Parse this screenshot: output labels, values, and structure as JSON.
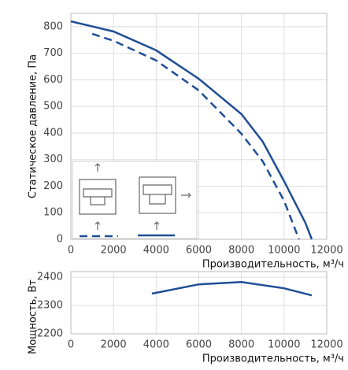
{
  "chart_data": [
    {
      "type": "line",
      "ylabel": "Статическое давление, Па",
      "xlabel": "Производительность, м³/ч",
      "xlim": [
        0,
        12000
      ],
      "xticks": [
        0,
        2000,
        4000,
        6000,
        8000,
        10000,
        12000
      ],
      "ylim": [
        0,
        850
      ],
      "yticks": [
        0,
        100,
        200,
        300,
        400,
        500,
        600,
        700,
        800
      ],
      "grid": true,
      "series": [
        {
          "color": "#1f4e96",
          "dash": false,
          "x": [
            0,
            2000,
            4000,
            6000,
            8000,
            9000,
            10000,
            11000,
            11300
          ],
          "values": [
            820,
            782,
            711,
            604,
            471,
            367,
            219,
            62,
            0
          ]
        },
        {
          "color": "#1f4e96",
          "dash": true,
          "x": [
            1000,
            2000,
            4000,
            6000,
            8000,
            9000,
            10000,
            10700
          ],
          "values": [
            773,
            747,
            673,
            560,
            397,
            293,
            145,
            0
          ]
        }
      ]
    },
    {
      "type": "line",
      "ylabel": "Мощность, Вт",
      "xlabel": "Производительность, м³/ч",
      "xlim": [
        0,
        12000
      ],
      "xticks": [
        0,
        2000,
        4000,
        6000,
        8000,
        10000,
        12000
      ],
      "ylim": [
        2200,
        2420
      ],
      "yticks": [
        2200,
        2300,
        2400
      ],
      "grid": true,
      "series": [
        {
          "color": "#1f4e96",
          "dash": false,
          "x": [
            3800,
            6000,
            8000,
            10000,
            11300
          ],
          "values": [
            2342,
            2375,
            2383,
            2361,
            2336
          ]
        }
      ]
    }
  ]
}
